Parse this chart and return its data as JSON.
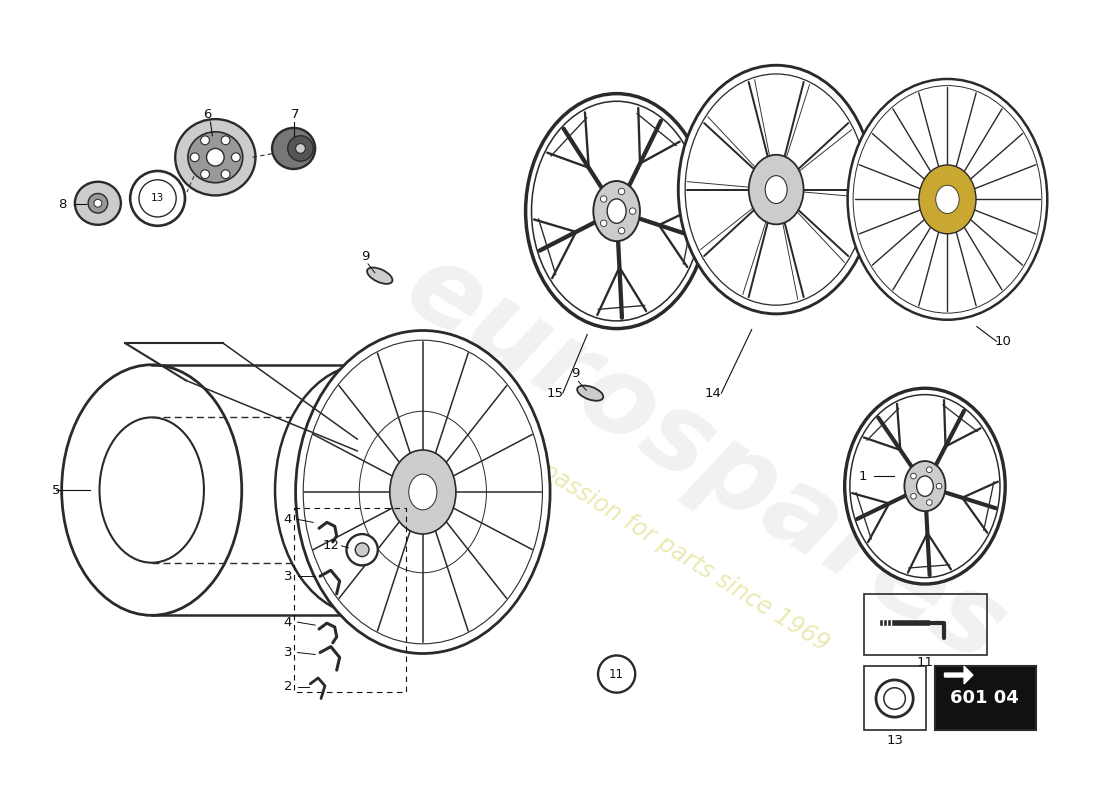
{
  "bg_color": "#ffffff",
  "lc": "#2a2a2a",
  "dc": "#111111",
  "gc": "#888888",
  "lgc": "#cccccc",
  "mgc": "#aaaaaa",
  "gold": "#c8a830",
  "part_number": "601 04",
  "part_number_bg": "#111111",
  "part_number_fg": "#ffffff",
  "wm_gray": "#c8c8c8",
  "wm_yellow": "#ccc840",
  "figsize": [
    11.0,
    8.0
  ],
  "dpi": 100
}
